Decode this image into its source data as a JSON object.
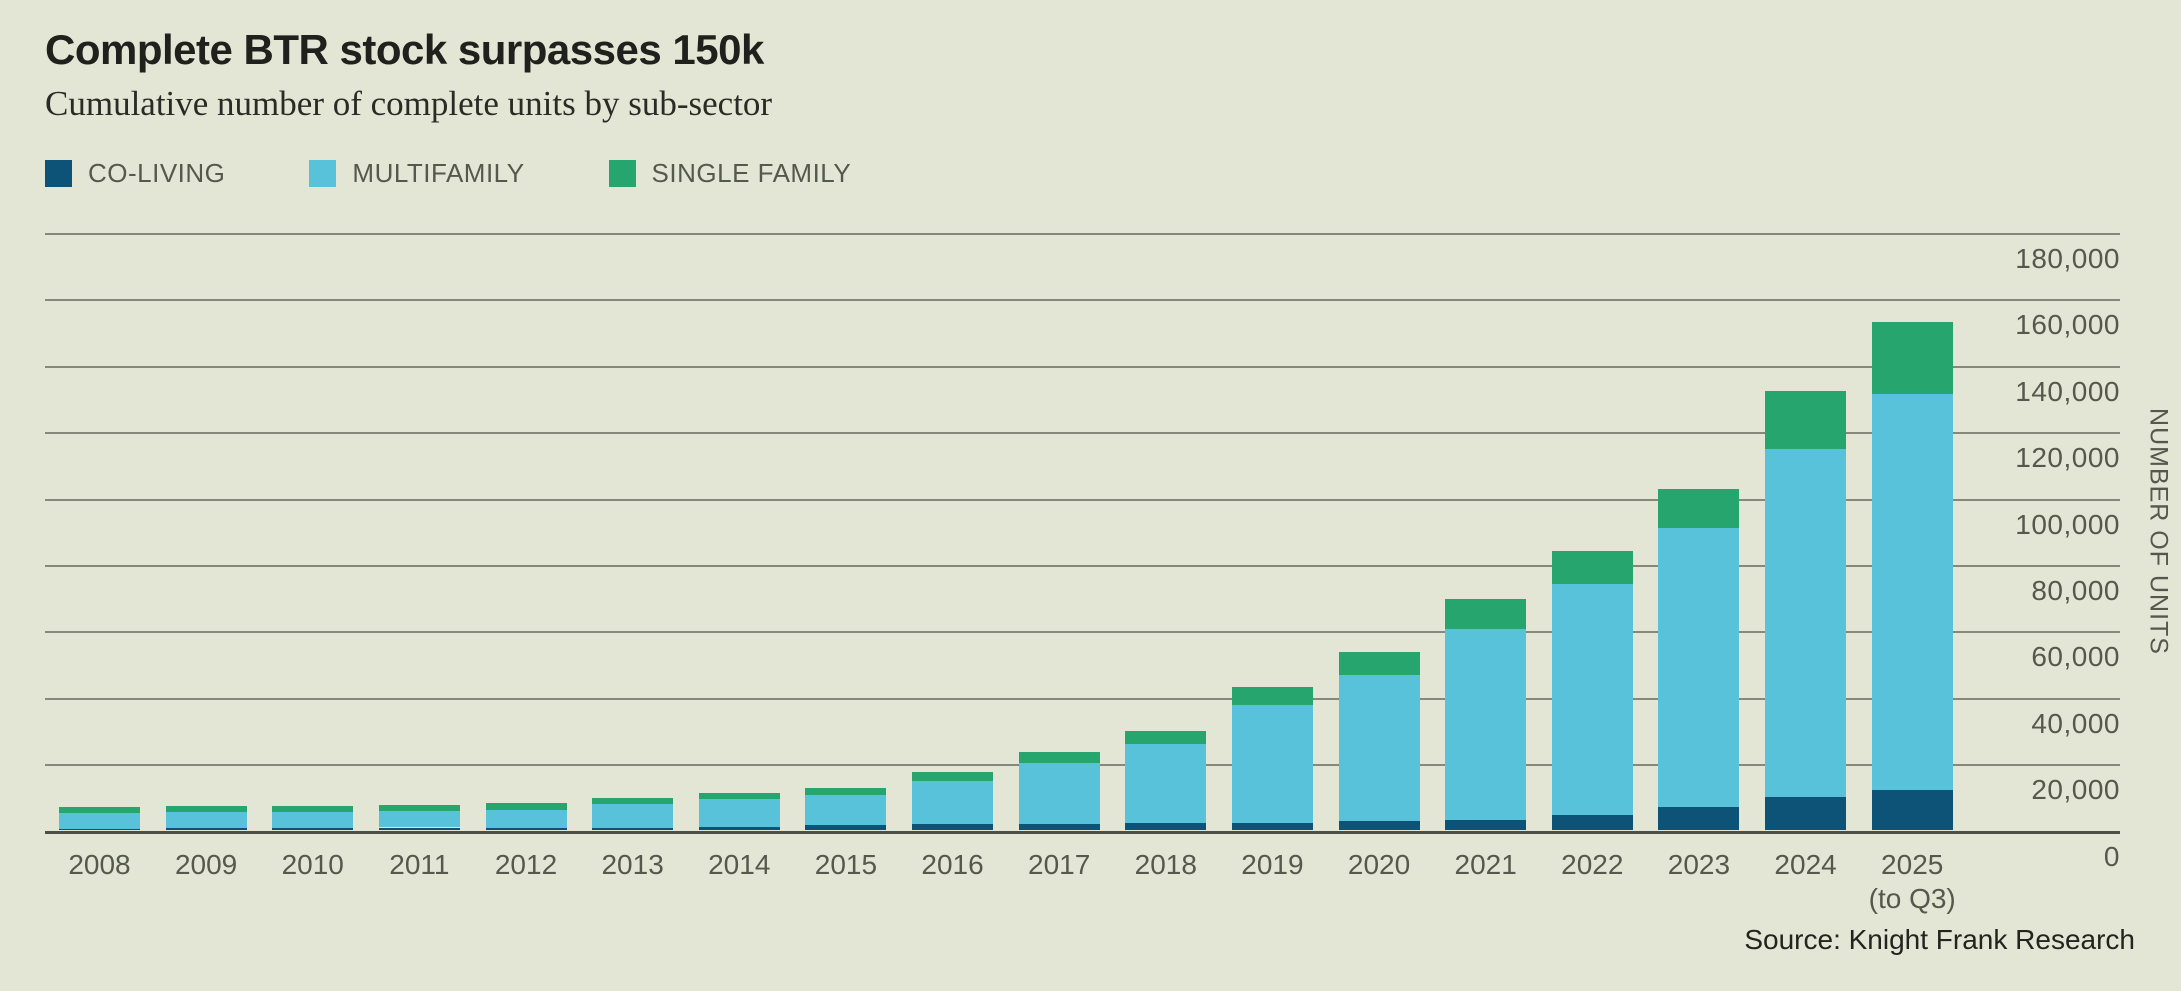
{
  "header": {
    "title": "Complete BTR stock surpasses 150k",
    "subtitle": "Cumulative number of complete units by sub-sector"
  },
  "chart_data": {
    "type": "bar",
    "variant": "stacked",
    "title": "Complete BTR stock surpasses 150k",
    "subtitle": "Cumulative number of complete units by sub-sector",
    "categories": [
      "2008",
      "2009",
      "2010",
      "2011",
      "2012",
      "2013",
      "2014",
      "2015",
      "2016",
      "2017",
      "2018",
      "2019",
      "2020",
      "2021",
      "2022",
      "2023",
      "2024",
      "2025"
    ],
    "last_category_sublabel": "(to Q3)",
    "series": [
      {
        "name": "CO-LIVING",
        "color": "#0d5377",
        "values": [
          600,
          700,
          900,
          900,
          900,
          900,
          1200,
          1600,
          1900,
          1900,
          2200,
          2400,
          3000,
          3300,
          4600,
          7200,
          10100,
          12300
        ]
      },
      {
        "name": "MULTIFAMILY",
        "color": "#57c2d9",
        "values": [
          4600,
          5000,
          4700,
          4900,
          5200,
          7100,
          8300,
          9100,
          13100,
          18400,
          23900,
          35400,
          43700,
          57500,
          69600,
          83800,
          104700,
          119100
        ]
      },
      {
        "name": "SINGLE FAMILY",
        "color": "#26a56e",
        "values": [
          1800,
          1700,
          1900,
          2000,
          2200,
          1800,
          1800,
          2100,
          2500,
          3300,
          4000,
          5500,
          7000,
          8800,
          9900,
          11800,
          17500,
          21800
        ]
      }
    ],
    "totals": [
      7000,
      7400,
      7500,
      7800,
      8300,
      9800,
      11300,
      12800,
      17500,
      23600,
      30100,
      43300,
      53700,
      69600,
      84100,
      102800,
      132300,
      153200
    ],
    "xlabel": "",
    "ylabel": "NUMBER OF UNITS",
    "ylim": [
      0,
      180000
    ],
    "yticks": [
      0,
      20000,
      40000,
      60000,
      80000,
      100000,
      120000,
      140000,
      160000,
      180000
    ],
    "grid": true,
    "legend_position": "top-left",
    "gridline_color": "#85887a",
    "background_color": "#e4e6d5"
  },
  "source": {
    "text": "Source: Knight Frank Research"
  }
}
